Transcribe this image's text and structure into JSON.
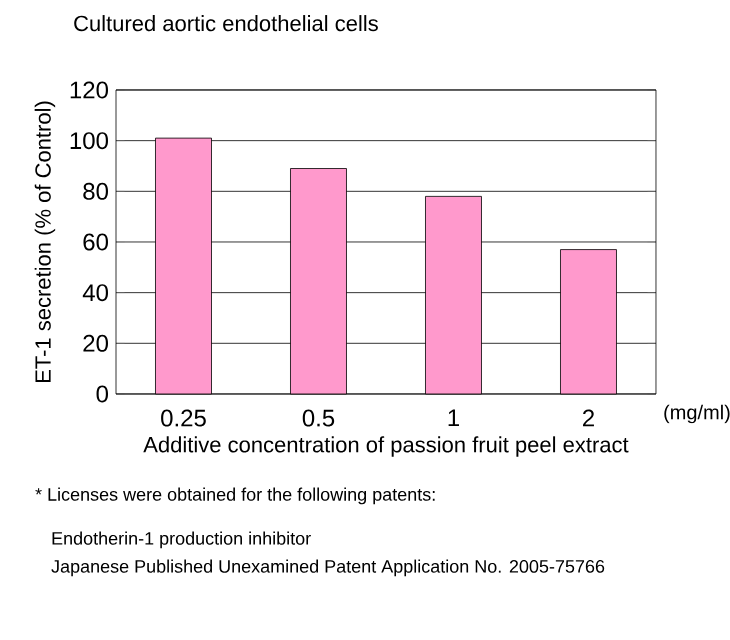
{
  "chart_data": {
    "type": "bar",
    "title": "Cultured aortic endothelial cells",
    "xlabel": "Additive concentration of passion fruit peel extract",
    "ylabel": "ET-1 secretion (% of Control)",
    "categories": [
      "0.25",
      "0.5",
      "1",
      "2"
    ],
    "values": [
      101,
      89,
      78,
      57
    ],
    "color": "#ff99cc",
    "ylim": [
      0,
      120
    ],
    "yticks": [
      0,
      20,
      40,
      60,
      80,
      100,
      120
    ],
    "grid": "y",
    "annotations": [
      "(mg/ml)",
      "* Licenses were obtained for the following patents:",
      "Endotherin-1 production inhibitor",
      "Japanese Published Unexamined Patent Application No. 2005-75766"
    ]
  }
}
